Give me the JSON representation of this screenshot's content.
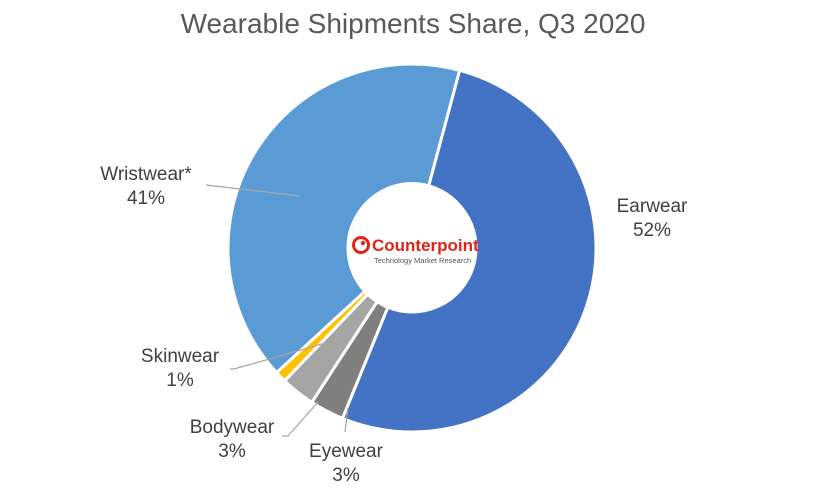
{
  "chart_data": {
    "type": "pie",
    "title": "Wearable Shipments Share, Q3 2020",
    "slices": [
      {
        "name": "Earwear",
        "value": 52,
        "label": "52%",
        "color": "#4472C4"
      },
      {
        "name": "Eyewear",
        "value": 3,
        "label": "3%",
        "color": "#7F7F7F"
      },
      {
        "name": "Bodywear",
        "value": 3,
        "label": "3%",
        "color": "#A5A5A5"
      },
      {
        "name": "Skinwear",
        "value": 1,
        "label": "1%",
        "color": "#FFC000"
      },
      {
        "name": "Wristwear*",
        "value": 41,
        "label": "41%",
        "color": "#5B9BD5"
      }
    ]
  },
  "logo": {
    "brand": "Counterpoint",
    "tagline": "Technology Market Research",
    "brand_color": "#E2231A"
  }
}
